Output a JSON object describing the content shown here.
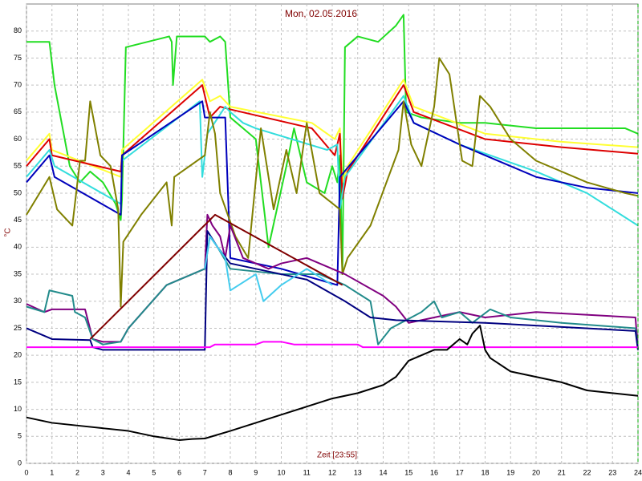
{
  "chart_data": {
    "type": "line",
    "title": "Mon, 02.05.2016",
    "x_label": "Zeit [23:55]",
    "y_label": "°C",
    "xlim": [
      0,
      24
    ],
    "xticks": [
      0,
      1,
      2,
      3,
      4,
      5,
      6,
      7,
      8,
      9,
      10,
      11,
      12,
      13,
      14,
      15,
      16,
      17,
      18,
      19,
      20,
      21,
      22,
      23,
      24
    ],
    "ylim": [
      0,
      85
    ],
    "yticks": [
      0,
      5,
      10,
      15,
      20,
      25,
      30,
      35,
      40,
      45,
      50,
      55,
      60,
      65,
      70,
      75,
      80
    ],
    "grid": true,
    "series": [
      {
        "color": "#22dd22",
        "x": [
          0,
          0.9,
          1.1,
          1.7,
          2.1,
          2.5,
          3.0,
          3.5,
          3.7,
          3.75,
          3.9,
          5.6,
          5.7,
          5.75,
          5.9,
          7.0,
          7.2,
          7.6,
          7.8,
          8.0,
          8.5,
          9.0,
          9.5,
          10.2,
          10.5,
          11.0,
          11.7,
          12.0,
          12.2,
          12.3,
          12.4,
          12.5,
          13.0,
          13.8,
          14.5,
          14.8,
          14.9,
          15.5,
          17.0,
          18.0,
          20.0,
          22.0,
          23.5,
          24
        ],
        "values": [
          78,
          78,
          70,
          55,
          52,
          54,
          52,
          48,
          45,
          49,
          77,
          79,
          78,
          70,
          79,
          79,
          78,
          79,
          78,
          64,
          62,
          60,
          40,
          55,
          62,
          52,
          50,
          55,
          52,
          57,
          35,
          77,
          79,
          78,
          81,
          83,
          65,
          64,
          63,
          63,
          62,
          62,
          62,
          61
        ]
      },
      {
        "color": "#ffff33",
        "x": [
          0,
          0.9,
          1.0,
          3.7,
          3.75,
          6.9,
          7.2,
          7.6,
          8.0,
          11.2,
          12.1,
          12.3,
          12.4,
          12.6,
          14.8,
          15.2,
          18,
          21,
          24
        ],
        "values": [
          56,
          61,
          58,
          53,
          58,
          71,
          67,
          68,
          66,
          63,
          60,
          62,
          52,
          55,
          71,
          66,
          61,
          59.5,
          58.5
        ]
      },
      {
        "color": "#dd0000",
        "x": [
          0,
          0.9,
          1.0,
          3.7,
          3.75,
          6.9,
          7.2,
          7.6,
          8.0,
          11.2,
          12.1,
          12.3,
          12.4,
          12.6,
          14.8,
          15.2,
          18,
          21,
          24
        ],
        "values": [
          55,
          60,
          57,
          54,
          57,
          70,
          64,
          66,
          65.5,
          62,
          57,
          61,
          49,
          54,
          70,
          65,
          60,
          58.5,
          57.3
        ]
      },
      {
        "color": "#33dddd",
        "x": [
          0,
          0.9,
          1.1,
          3.7,
          3.75,
          6.8,
          6.9,
          7.1,
          7.8,
          8.0,
          8.5,
          9,
          11.8,
          12.2,
          12.3,
          12.5,
          14.8,
          15.2,
          17,
          20,
          22,
          24
        ],
        "values": [
          53,
          58,
          55,
          48,
          56,
          67,
          53,
          61,
          66,
          65,
          63,
          62,
          58,
          59,
          47,
          53,
          68,
          63,
          59,
          54,
          50,
          44
        ]
      },
      {
        "color": "#0000bb",
        "x": [
          0,
          0.9,
          1.1,
          3.7,
          3.75,
          6.9,
          7.0,
          7.8,
          8.0,
          10,
          12.2,
          12.3,
          14.8,
          15.2,
          17,
          20,
          22,
          24
        ],
        "values": [
          52,
          57,
          53,
          46,
          57,
          67,
          64,
          64,
          38,
          36,
          33,
          53,
          67,
          63,
          59,
          53,
          51,
          50
        ]
      },
      {
        "color": "#808000",
        "x": [
          0,
          0.9,
          1.2,
          1.8,
          2.1,
          2.3,
          2.5,
          2.9,
          3.3,
          3.6,
          3.7,
          3.8,
          4.5,
          5.5,
          5.7,
          5.8,
          7.0,
          7.2,
          7.4,
          7.6,
          8.2,
          8.7,
          9.2,
          9.7,
          10.2,
          10.6,
          11.0,
          11.5,
          12.3,
          12.4,
          12.6,
          13.5,
          14.6,
          14.8,
          15.1,
          15.5,
          16.0,
          16.2,
          16.6,
          17.1,
          17.5,
          17.8,
          18.2,
          19,
          20,
          22,
          23.5,
          24
        ],
        "values": [
          46,
          53,
          47,
          44,
          56,
          56,
          67,
          57,
          55,
          47,
          29,
          41,
          46,
          52,
          44,
          53,
          57,
          65,
          61,
          50,
          42,
          38,
          62,
          47,
          58,
          50,
          63,
          50,
          47,
          35,
          38,
          44,
          58,
          67,
          59,
          55,
          66,
          75,
          72,
          56,
          55,
          68,
          66,
          60,
          56,
          52,
          50,
          49.5
        ]
      },
      {
        "color": "#800080",
        "x": [
          0,
          0.7,
          1.0,
          2.3,
          2.6,
          3.0,
          3.7,
          4.0,
          5.5,
          6.0,
          7.0,
          7.1,
          7.3,
          7.6,
          7.8,
          8.0,
          8.5,
          9.5,
          10,
          11,
          12.5,
          14,
          14.5,
          15,
          16,
          17,
          18,
          20,
          23.9,
          24
        ],
        "values": [
          29.5,
          28,
          28.5,
          28.5,
          23,
          22.5,
          22.5,
          25,
          33,
          34,
          36,
          46,
          44,
          42,
          38,
          44,
          38,
          36,
          37,
          38,
          35,
          31,
          29,
          26,
          27,
          28,
          27,
          28,
          27,
          21
        ]
      },
      {
        "color": "#228b8b",
        "x": [
          0,
          0.7,
          0.9,
          1.8,
          1.9,
          2.3,
          2.6,
          3.0,
          3.7,
          4.0,
          5.5,
          6.0,
          7.0,
          7.2,
          7.5,
          8.0,
          10,
          11.5,
          12.5,
          13.5,
          13.8,
          14.3,
          15.5,
          16.0,
          16.3,
          17,
          17.5,
          18.2,
          19,
          21,
          23.9,
          24
        ],
        "values": [
          29,
          28,
          32,
          31,
          28,
          27,
          23,
          22,
          22.5,
          25,
          33,
          34,
          36,
          42,
          40,
          36,
          35,
          35,
          33,
          30,
          22,
          25,
          28,
          30,
          27,
          28,
          26,
          28.5,
          27,
          26,
          25,
          21
        ]
      },
      {
        "color": "#000080",
        "x": [
          0,
          1,
          2.5,
          2.6,
          3.0,
          7.0,
          7.1,
          7.5,
          8.0,
          10,
          11,
          12.5,
          13.5,
          14.5,
          18,
          23.9,
          24
        ],
        "values": [
          25,
          23,
          22.8,
          21.5,
          21,
          21,
          43,
          40,
          37,
          35,
          34,
          30,
          27,
          26.5,
          26,
          24.5,
          21
        ]
      },
      {
        "color": "#44ccee",
        "x": [
          7.0,
          7.2,
          7.8,
          8.0,
          9,
          9.3,
          10,
          11,
          12
        ],
        "values": [
          36,
          42,
          38,
          32,
          35,
          30,
          33,
          36,
          33
        ]
      },
      {
        "color": "#ff00ff",
        "x": [
          0,
          7.2,
          7.4,
          9,
          9.3,
          10,
          10.5,
          13,
          13.2,
          18,
          24
        ],
        "values": [
          21.5,
          21.5,
          22,
          22,
          22.5,
          22.5,
          22,
          22,
          21.5,
          21.5,
          21.5
        ]
      },
      {
        "color": "#000000",
        "x": [
          0,
          1,
          2,
          3,
          4,
          5,
          6,
          6.5,
          7,
          8,
          9,
          10,
          11,
          12,
          13,
          14,
          14.5,
          15,
          16,
          16.5,
          17,
          17.3,
          17.5,
          17.8,
          18,
          18.2,
          19,
          20,
          21,
          22,
          23,
          24
        ],
        "values": [
          8.5,
          7.5,
          7,
          6.5,
          6,
          5,
          4.3,
          4.5,
          4.6,
          6,
          7.5,
          9,
          10.5,
          12,
          13,
          14.5,
          16,
          19,
          21,
          21,
          23,
          22,
          24,
          25.5,
          21,
          19.5,
          17,
          16,
          15,
          13.5,
          13,
          12.5
        ]
      },
      {
        "color": "#800000",
        "x": [
          2.5,
          7.4,
          12.4
        ],
        "values": [
          23,
          46,
          33
        ]
      }
    ]
  }
}
